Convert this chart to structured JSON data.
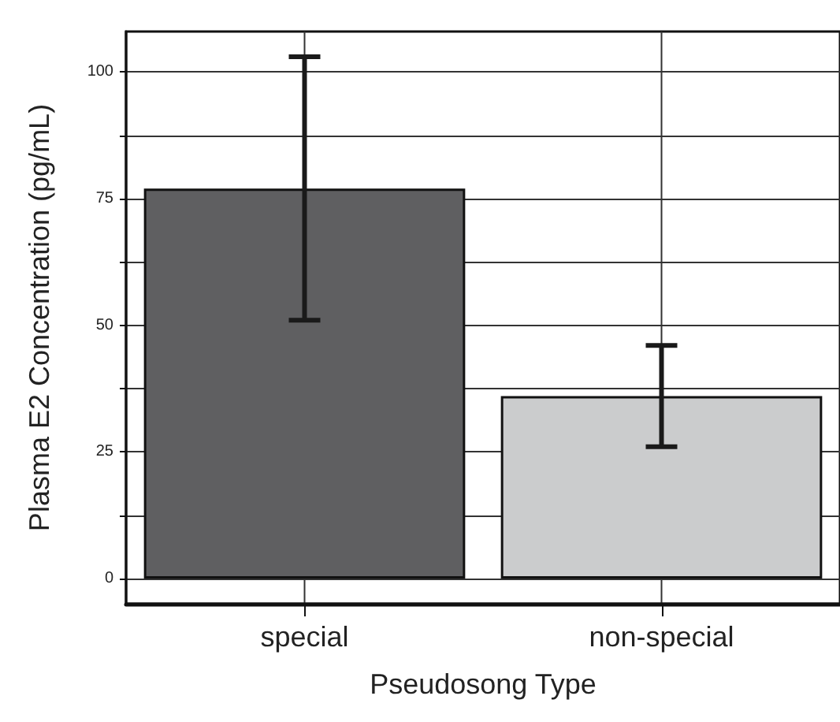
{
  "chart_data": {
    "type": "bar",
    "categories": [
      "special",
      "non-special"
    ],
    "values": [
      77,
      36
    ],
    "colors": [
      "#5f5f61",
      "#cbcccd"
    ],
    "errors": [
      [
        51,
        103
      ],
      [
        26,
        46
      ]
    ],
    "xlabel": "Pseudosong Type",
    "ylabel": "Plasma E2 Concentration (pg/mL)",
    "ylim": [
      -5,
      108
    ],
    "yticks": [
      0,
      {
        "value": 12.5,
        "label": null
      },
      25,
      {
        "value": 37.5,
        "label": null
      },
      50,
      {
        "value": 62.5,
        "label": null
      },
      75,
      {
        "value": 87.5,
        "label": null
      },
      100
    ],
    "grid": true
  }
}
